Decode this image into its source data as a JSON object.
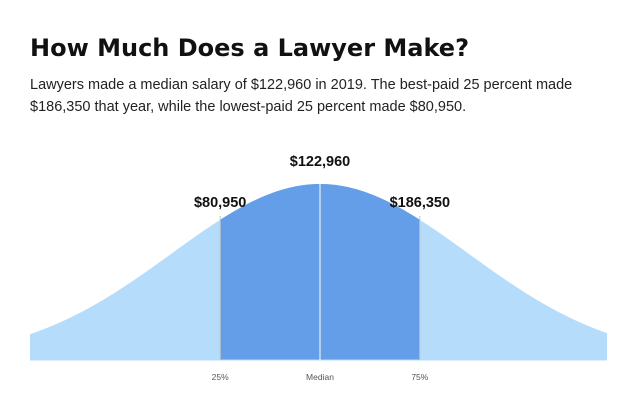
{
  "title": "How Much Does a Lawyer Make?",
  "subtitle": "Lawyers made a median salary of $122,960 in 2019. The best-paid 25 percent made $186,350 that year, while the lowest-paid 25 percent made $80,950.",
  "colors": {
    "tail_fill": "#b5dcfb",
    "middle_fill": "#649ee8",
    "divider": "#ffffff",
    "marker_line": "#c8c8c8",
    "baseline": "#b5dcfb"
  },
  "chart_data": {
    "type": "area",
    "distribution": "bell-curve",
    "x_ticks": [
      "25%",
      "Median",
      "75%"
    ],
    "markers": [
      {
        "percentile": 25,
        "tick_label": "25%",
        "value_label": "$80,950",
        "value": 80950
      },
      {
        "percentile": 50,
        "tick_label": "Median",
        "value_label": "$122,960",
        "value": 122960
      },
      {
        "percentile": 75,
        "tick_label": "75%",
        "value_label": "$186,350",
        "value": 186350
      }
    ],
    "shaded_range": "25%-75%",
    "grid": false,
    "legend": "none"
  }
}
